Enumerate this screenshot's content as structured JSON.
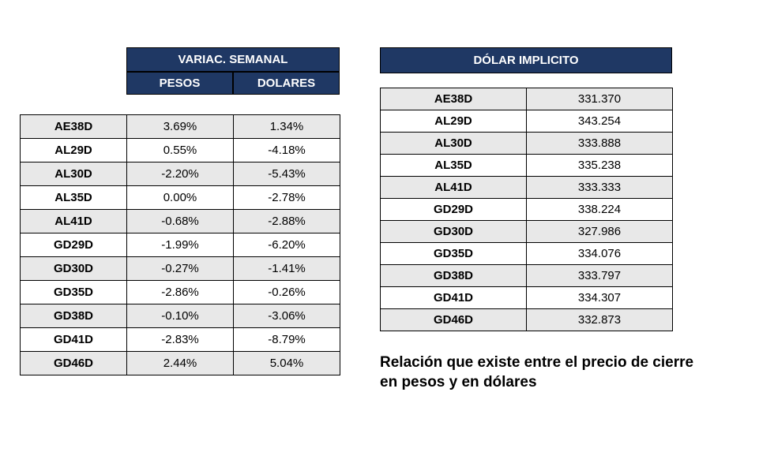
{
  "left_table": {
    "header_main": "VARIAC. SEMANAL",
    "subheaders": [
      "PESOS",
      "DOLARES"
    ],
    "header_bg_color": "#1f3864",
    "header_text_color": "#ffffff",
    "border_color": "#000000",
    "row_even_bg": "#e8e8e8",
    "row_odd_bg": "#ffffff",
    "font_size": 15,
    "rows": [
      {
        "ticker": "AE38D",
        "pesos": "3.69%",
        "dolares": "1.34%"
      },
      {
        "ticker": "AL29D",
        "pesos": "0.55%",
        "dolares": "-4.18%"
      },
      {
        "ticker": "AL30D",
        "pesos": "-2.20%",
        "dolares": "-5.43%"
      },
      {
        "ticker": "AL35D",
        "pesos": "0.00%",
        "dolares": "-2.78%"
      },
      {
        "ticker": "AL41D",
        "pesos": "-0.68%",
        "dolares": "-2.88%"
      },
      {
        "ticker": "GD29D",
        "pesos": "-1.99%",
        "dolares": "-6.20%"
      },
      {
        "ticker": "GD30D",
        "pesos": "-0.27%",
        "dolares": "-1.41%"
      },
      {
        "ticker": "GD35D",
        "pesos": "-2.86%",
        "dolares": "-0.26%"
      },
      {
        "ticker": "GD38D",
        "pesos": "-0.10%",
        "dolares": "-3.06%"
      },
      {
        "ticker": "GD41D",
        "pesos": "-2.83%",
        "dolares": "-8.79%"
      },
      {
        "ticker": "GD46D",
        "pesos": "2.44%",
        "dolares": "5.04%"
      }
    ]
  },
  "right_table": {
    "header": "DÓLAR IMPLICITO",
    "header_bg_color": "#1f3864",
    "header_text_color": "#ffffff",
    "border_color": "#000000",
    "row_even_bg": "#e8e8e8",
    "row_odd_bg": "#ffffff",
    "font_size": 15,
    "rows": [
      {
        "ticker": "AE38D",
        "value": "331.370"
      },
      {
        "ticker": "AL29D",
        "value": "343.254"
      },
      {
        "ticker": "AL30D",
        "value": "333.888"
      },
      {
        "ticker": "AL35D",
        "value": "335.238"
      },
      {
        "ticker": "AL41D",
        "value": "333.333"
      },
      {
        "ticker": "GD29D",
        "value": "338.224"
      },
      {
        "ticker": "GD30D",
        "value": "327.986"
      },
      {
        "ticker": "GD35D",
        "value": "334.076"
      },
      {
        "ticker": "GD38D",
        "value": "333.797"
      },
      {
        "ticker": "GD41D",
        "value": "334.307"
      },
      {
        "ticker": "GD46D",
        "value": "332.873"
      }
    ]
  },
  "caption": "Relación que existe entre el precio de cierre en pesos y en dólares",
  "background_color": "#ffffff"
}
